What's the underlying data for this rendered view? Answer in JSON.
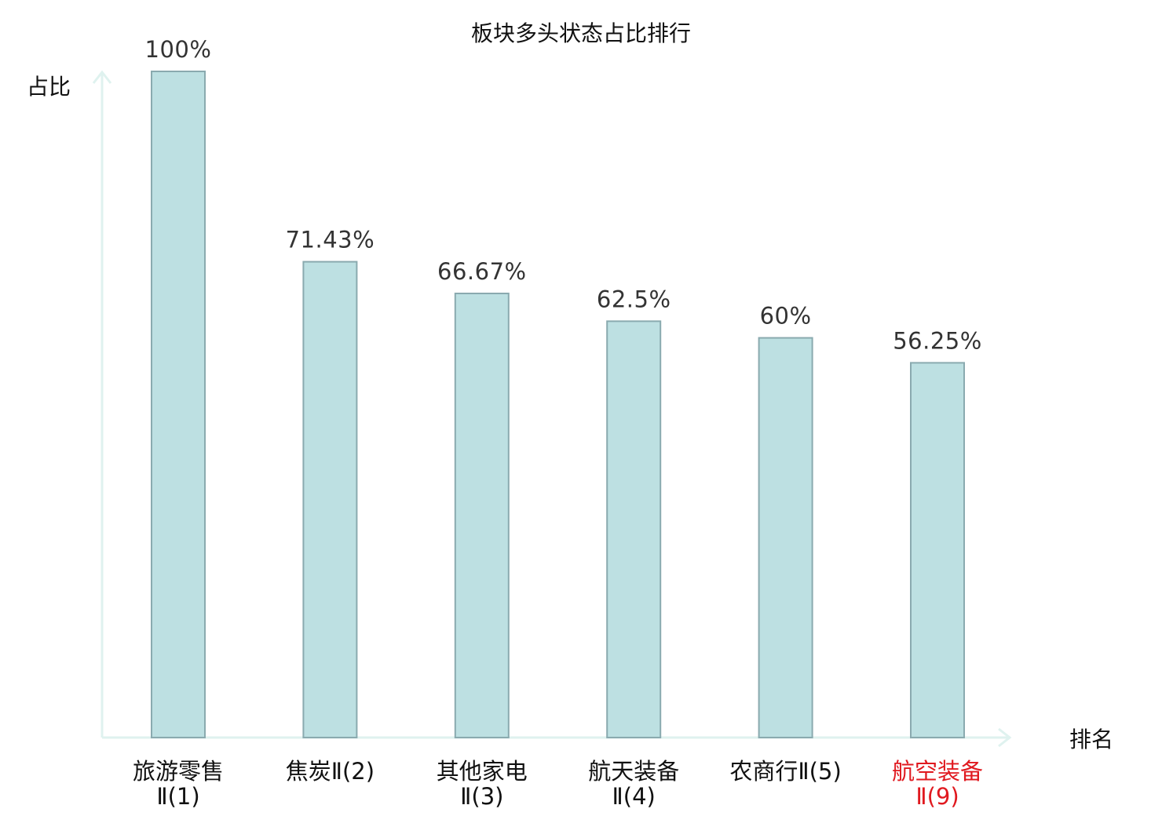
{
  "chart_data": {
    "type": "bar",
    "title": "板块多头状态占比排行",
    "ylabel": "占比",
    "xlabel": "排名",
    "ylim": [
      0,
      100
    ],
    "grid": false,
    "categories": [
      [
        "旅游零售",
        "Ⅱ(1)"
      ],
      [
        "焦炭Ⅱ(2)"
      ],
      [
        "其他家电",
        "Ⅱ(3)"
      ],
      [
        "航天装备",
        "Ⅱ(4)"
      ],
      [
        "农商行Ⅱ(5)"
      ],
      [
        "航空装备",
        "Ⅱ(9)"
      ]
    ],
    "values": [
      100,
      71.43,
      66.67,
      62.5,
      60,
      56.25
    ],
    "value_labels": [
      "100%",
      "71.43%",
      "66.67%",
      "62.5%",
      "60%",
      "56.25%"
    ],
    "highlight_index": 5,
    "colors": {
      "bar_fill": "#bde0e2",
      "bar_stroke": "#8aaaaf",
      "axis": "#dff2ef",
      "text": "#111111",
      "value_text": "#333333",
      "highlight_text": "#e0191f"
    }
  }
}
